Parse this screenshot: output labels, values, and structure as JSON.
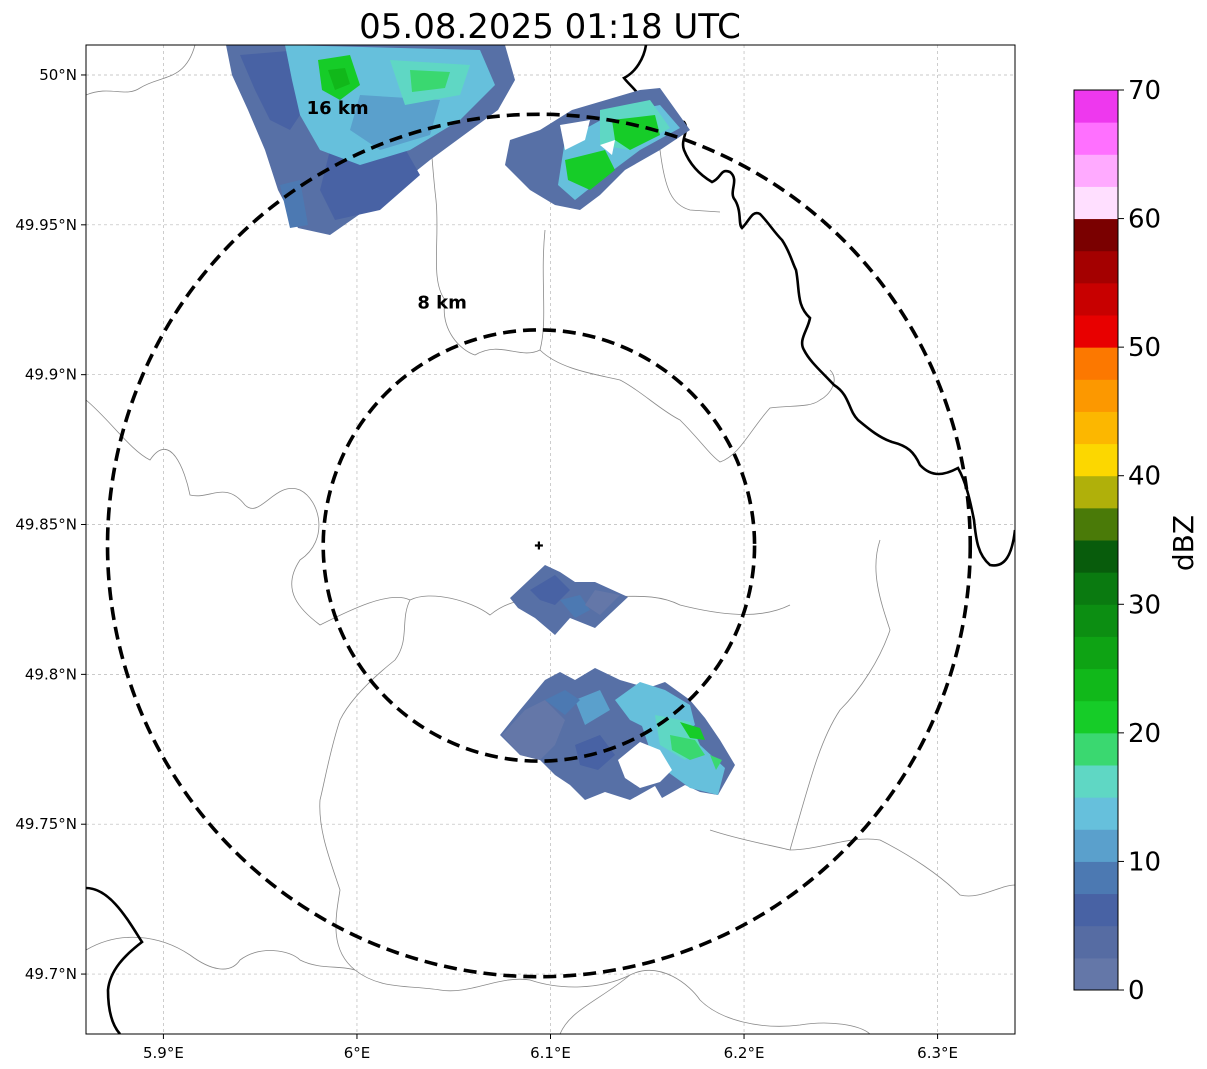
{
  "title": "05.08.2025 01:18 UTC",
  "map": {
    "lon_range": [
      5.86,
      6.34
    ],
    "lat_range": [
      49.68,
      50.01
    ],
    "radar_site": {
      "lon": 6.094,
      "lat": 49.843
    },
    "x_ticks": [
      {
        "value": 5.9,
        "label": "5.9°E"
      },
      {
        "value": 6.0,
        "label": "6°E"
      },
      {
        "value": 6.1,
        "label": "6.1°E"
      },
      {
        "value": 6.2,
        "label": "6.2°E"
      },
      {
        "value": 6.3,
        "label": "6.3°E"
      }
    ],
    "y_ticks": [
      {
        "value": 49.7,
        "label": "49.7°N"
      },
      {
        "value": 49.75,
        "label": "49.75°N"
      },
      {
        "value": 49.8,
        "label": "49.8°N"
      },
      {
        "value": 49.85,
        "label": "49.85°N"
      },
      {
        "value": 49.9,
        "label": "49.9°N"
      },
      {
        "value": 49.95,
        "label": "49.95°N"
      },
      {
        "value": 50.0,
        "label": "50°N"
      }
    ],
    "range_rings": [
      {
        "radius_km": 8,
        "label": "8 km",
        "label_lon": 6.044,
        "label_lat": 49.922
      },
      {
        "radius_km": 16,
        "label": "16 km",
        "label_lon": 5.99,
        "label_lat": 49.987
      }
    ]
  },
  "colorbar": {
    "label": "dBZ",
    "min": 0,
    "max": 70,
    "ticks": [
      {
        "value": 0,
        "label": "0"
      },
      {
        "value": 10,
        "label": "10"
      },
      {
        "value": 20,
        "label": "20"
      },
      {
        "value": 30,
        "label": "30"
      },
      {
        "value": 40,
        "label": "40"
      },
      {
        "value": 50,
        "label": "50"
      },
      {
        "value": 60,
        "label": "60"
      },
      {
        "value": 70,
        "label": "70"
      }
    ],
    "colors": [
      "#6477a8",
      "#566ca3",
      "#4862a4",
      "#4c79b2",
      "#5aa0cc",
      "#66c0dc",
      "#5fd7c4",
      "#3ad870",
      "#16cc28",
      "#11b81a",
      "#0ea314",
      "#0c8e12",
      "#0a7a10",
      "#085c0c",
      "#4a7a08",
      "#b0b00a",
      "#fcd700",
      "#fcb700",
      "#fc9800",
      "#fc7800",
      "#e80000",
      "#c80000",
      "#a40000",
      "#7a0000",
      "#ffdfff",
      "#ffaaff",
      "#ff70ff",
      "#ee38ee"
    ]
  },
  "echoes": [
    {
      "name": "north-west-cell",
      "lon": 5.995,
      "lat": 49.985,
      "dbz": 8
    },
    {
      "name": "north-east-cell",
      "lon": 6.135,
      "lat": 49.978,
      "dbz": 14
    },
    {
      "name": "central-cell",
      "lon": 6.1,
      "lat": 49.825,
      "dbz": 5
    },
    {
      "name": "south-cell",
      "lon": 6.145,
      "lat": 49.785,
      "dbz": 10
    }
  ]
}
